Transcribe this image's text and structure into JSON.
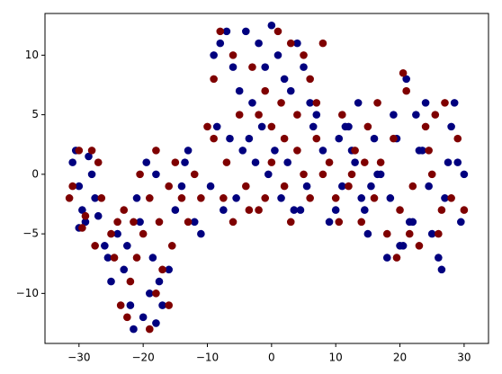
{
  "chart_data": {
    "type": "scatter",
    "xlim": [
      -35.3,
      33.8
    ],
    "ylim": [
      -14.2,
      13.5
    ],
    "xticks": [
      {
        "value": -30,
        "label": "−30"
      },
      {
        "value": -20,
        "label": "−20"
      },
      {
        "value": -10,
        "label": "−10"
      },
      0,
      10,
      20,
      30
    ],
    "yticks": [
      {
        "value": -10,
        "label": "−10"
      },
      {
        "value": -5,
        "label": "−5"
      },
      0,
      5,
      10
    ],
    "series": [
      {
        "color": "#00007f",
        "x": [
          -31,
          -30,
          -29.5,
          -30.5,
          -28,
          -29,
          -27.5,
          -28.5,
          -30,
          -27,
          -26,
          -25.5,
          -24,
          -25,
          -23,
          -22,
          -21.5,
          -20,
          -19,
          -18.5,
          -18,
          -17,
          -20.5,
          -21,
          -22.5,
          -19.5,
          -17.5,
          -16,
          -18,
          -15,
          -14,
          -13,
          -12,
          -11,
          -13.5,
          -9,
          -8,
          -7,
          -6,
          -5,
          -4,
          -3,
          -2,
          -1,
          0,
          1,
          2,
          3,
          4,
          5,
          6,
          7,
          -8.5,
          -6.5,
          -4.5,
          -2.5,
          -0.5,
          1.5,
          3.5,
          5.5,
          -9.5,
          -7.5,
          -5.5,
          -3.5,
          -1.5,
          0.5,
          2.5,
          4.5,
          6.5,
          8,
          9,
          10,
          11,
          12,
          13,
          14,
          15,
          16,
          17,
          18,
          19,
          20,
          21,
          22,
          23,
          24,
          25,
          26,
          27,
          28,
          29,
          30,
          10.5,
          12.5,
          14.5,
          16.5,
          18.5,
          20.5,
          22.5,
          24.5,
          26.5,
          28.5,
          29.5,
          27.5,
          23.5,
          21.5,
          19.5,
          11.5,
          13.5,
          15.5
        ],
        "values": [
          1,
          -1,
          -3,
          2,
          0,
          -4,
          -2,
          1.5,
          -4.5,
          -3.5,
          -6,
          -7,
          -5,
          -9,
          -8,
          -11,
          -13,
          -12,
          -10,
          -7,
          -12.5,
          -11,
          -4,
          -2,
          -6,
          1,
          -9,
          -8,
          0,
          -3,
          -1,
          2,
          -4,
          -5,
          1,
          10,
          11,
          12,
          9,
          7,
          12,
          6,
          11,
          9,
          12.5,
          10,
          8,
          7,
          11,
          9,
          6,
          5,
          4,
          3,
          2,
          1,
          0,
          -2,
          -3,
          -1,
          -1,
          -3,
          -2,
          3,
          4,
          2,
          1,
          -3,
          4,
          2,
          -4,
          -3,
          -1,
          4,
          1,
          -2,
          -5,
          3,
          0,
          -7,
          5,
          -6,
          8,
          -4,
          2,
          6,
          -5,
          -7,
          -2,
          4,
          1,
          0,
          3,
          2,
          -3,
          0,
          -2,
          -6,
          5,
          -1,
          -8,
          6,
          -4,
          1,
          2,
          -4,
          3,
          4,
          6,
          -1
        ]
      },
      {
        "color": "#7f0000",
        "x": [
          -31.5,
          -30,
          -29,
          -31,
          -28,
          -29.5,
          -26.5,
          -27,
          -24,
          -23,
          -24.5,
          -23.5,
          -22,
          -21,
          -20,
          -22.5,
          -19,
          -18,
          -17,
          -16,
          -15.5,
          -17.5,
          -19,
          -16,
          -14,
          -12,
          -11,
          -18,
          -15,
          -13,
          -20.5,
          -21.5,
          -9,
          -8,
          -6,
          -5,
          -3,
          -1,
          1,
          3,
          5,
          6,
          8,
          7,
          -2,
          0,
          2,
          4,
          -7,
          -4,
          -2,
          0,
          2,
          4,
          6,
          8,
          -9,
          -6,
          -1,
          3,
          5,
          7,
          9,
          10,
          11,
          12,
          13,
          14,
          15,
          16,
          17,
          18,
          19,
          20,
          21,
          22,
          23,
          24,
          25,
          26,
          27,
          28,
          29,
          30,
          21.5,
          19.5,
          24.5,
          26.5,
          12.5,
          14.5,
          -10,
          -7.5,
          10.5,
          16.5,
          20.5,
          25.5,
          -25,
          -27.5,
          -3.5,
          1.5
        ],
        "values": [
          -2,
          2,
          -3.5,
          -1,
          2,
          -4.5,
          -2,
          1,
          -4,
          -3,
          -7,
          -11,
          -9,
          -7,
          -5,
          -12,
          -13,
          -10,
          -8,
          -11,
          -6,
          -4,
          -2,
          -1,
          -2,
          0,
          -2,
          2,
          1,
          -4,
          0,
          -4,
          8,
          12,
          10,
          5,
          9,
          7,
          12,
          11,
          10,
          8,
          11,
          6,
          5,
          4,
          3,
          5,
          1,
          -1,
          -3,
          1,
          -1,
          2,
          -2,
          0,
          3,
          -4,
          -2,
          -4,
          0,
          3,
          1,
          -2,
          5,
          -1,
          2,
          -4,
          4,
          -2,
          1,
          -5,
          3,
          -3,
          7,
          -1,
          -6,
          4,
          0,
          -5,
          6,
          -2,
          3,
          -3,
          -5,
          -7,
          2,
          -3,
          0,
          1,
          4,
          -2,
          -4,
          6,
          8.5,
          5,
          -5,
          -6,
          -3,
          6
        ]
      }
    ]
  }
}
